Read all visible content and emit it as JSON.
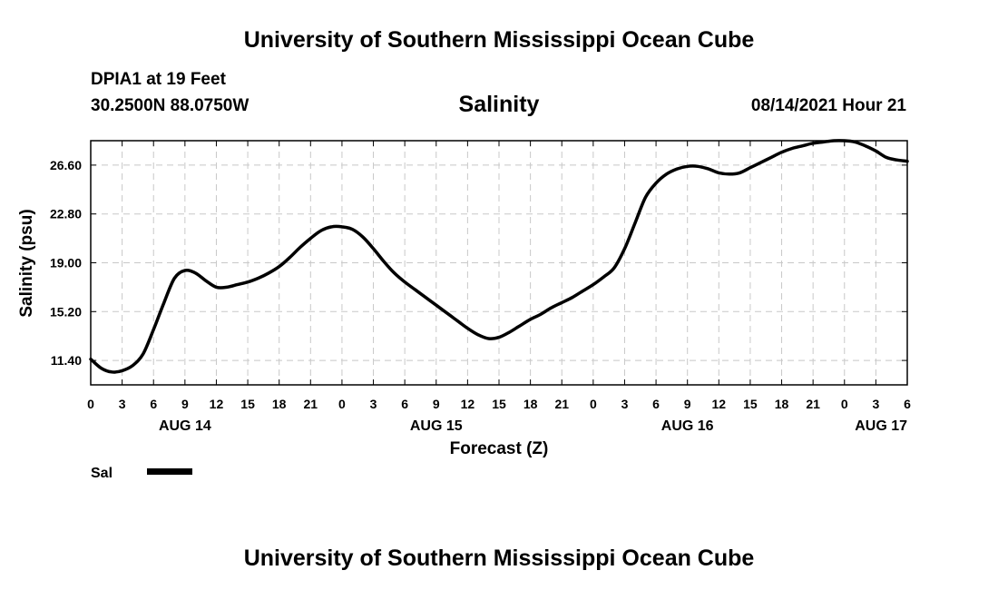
{
  "header": {
    "org_title": "University of Southern Mississippi Ocean Cube",
    "station": "DPIA1 at 19 Feet",
    "coords": "30.2500N  88.0750W",
    "forecast_time": "08/14/2021 Hour 21"
  },
  "footer": {
    "org_title": "University of Southern Mississippi Ocean Cube"
  },
  "legend": {
    "label": "Sal",
    "color": "#000000"
  },
  "chart_data": {
    "type": "line",
    "title": "Salinity",
    "xlabel": "Forecast (Z)",
    "ylabel": "Salinity (psu)",
    "xlim": [
      0,
      78
    ],
    "ylim": [
      9.5,
      28.5
    ],
    "yticks": [
      11.4,
      15.2,
      19.0,
      22.8,
      26.6
    ],
    "ytick_labels": [
      "11.40",
      "15.20",
      "19.00",
      "22.80",
      "26.60"
    ],
    "xticks": [
      0,
      3,
      6,
      9,
      12,
      15,
      18,
      21,
      24,
      27,
      30,
      33,
      36,
      39,
      42,
      45,
      48,
      51,
      54,
      57,
      60,
      63,
      66,
      69,
      72,
      75,
      78
    ],
    "xtick_labels": [
      "0",
      "3",
      "6",
      "9",
      "12",
      "15",
      "18",
      "21",
      "0",
      "3",
      "6",
      "9",
      "12",
      "15",
      "18",
      "21",
      "0",
      "3",
      "6",
      "9",
      "12",
      "15",
      "18",
      "21",
      "0",
      "3",
      "6"
    ],
    "date_labels": [
      {
        "x": 9,
        "text": "AUG 14"
      },
      {
        "x": 33,
        "text": "AUG 15"
      },
      {
        "x": 57,
        "text": "AUG 16"
      },
      {
        "x": 75.5,
        "text": "AUG 17"
      }
    ],
    "grid": true,
    "series": [
      {
        "name": "Sal",
        "x": [
          0,
          1,
          2,
          3,
          4,
          5,
          6,
          7,
          8,
          9,
          10,
          11,
          12,
          13,
          14,
          15,
          16,
          17,
          18,
          19,
          20,
          21,
          22,
          23,
          24,
          25,
          26,
          27,
          28,
          29,
          30,
          31,
          32,
          33,
          34,
          35,
          36,
          37,
          38,
          39,
          40,
          41,
          42,
          43,
          44,
          45,
          46,
          47,
          48,
          49,
          50,
          51,
          52,
          53,
          54,
          55,
          56,
          57,
          58,
          59,
          60,
          61,
          62,
          63,
          64,
          65,
          66,
          67,
          68,
          69,
          70,
          71,
          72,
          73,
          74,
          75,
          76,
          77,
          78
        ],
        "values": [
          11.5,
          10.8,
          10.5,
          10.6,
          11.0,
          11.9,
          13.8,
          15.9,
          17.8,
          18.4,
          18.2,
          17.6,
          17.1,
          17.1,
          17.3,
          17.5,
          17.8,
          18.2,
          18.7,
          19.4,
          20.2,
          20.9,
          21.5,
          21.8,
          21.8,
          21.6,
          21.0,
          20.1,
          19.1,
          18.2,
          17.5,
          16.9,
          16.3,
          15.7,
          15.1,
          14.5,
          13.9,
          13.4,
          13.1,
          13.2,
          13.6,
          14.1,
          14.6,
          15.0,
          15.5,
          15.9,
          16.3,
          16.8,
          17.3,
          17.9,
          18.6,
          20.1,
          22.1,
          24.1,
          25.2,
          25.9,
          26.3,
          26.5,
          26.5,
          26.3,
          26.0,
          25.9,
          26.0,
          26.4,
          26.8,
          27.2,
          27.6,
          27.9,
          28.1,
          28.3,
          28.4,
          28.5,
          28.5,
          28.4,
          28.1,
          27.7,
          27.2,
          27.0,
          26.9
        ],
        "color": "#000000"
      }
    ]
  }
}
